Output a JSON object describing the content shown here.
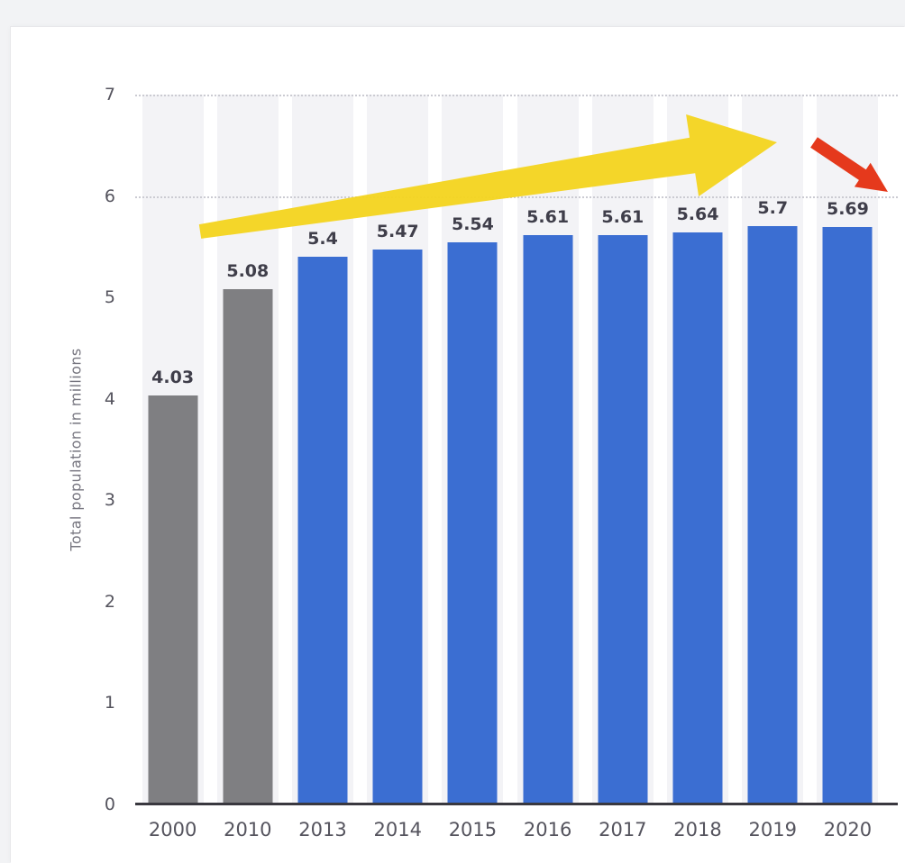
{
  "page": {
    "background_color": "#f2f3f5",
    "card_background_color": "#ffffff"
  },
  "chart_data": {
    "type": "bar",
    "title": "",
    "xlabel": "",
    "ylabel": "Total population in millions",
    "categories": [
      "2000",
      "2010",
      "2013",
      "2014",
      "2015",
      "2016",
      "2017",
      "2018",
      "2019",
      "2020"
    ],
    "values": [
      4.03,
      5.08,
      5.4,
      5.47,
      5.54,
      5.61,
      5.61,
      5.64,
      5.7,
      5.69
    ],
    "value_labels": [
      "4.03",
      "5.08",
      "5.4",
      "5.47",
      "5.54",
      "5.61",
      "5.61",
      "5.64",
      "5.7",
      "5.69"
    ],
    "bar_colors": [
      "#7f7f82",
      "#7f7f82",
      "#3b6ed2",
      "#3b6ed2",
      "#3b6ed2",
      "#3b6ed2",
      "#3b6ed2",
      "#3b6ed2",
      "#3b6ed2",
      "#3b6ed2"
    ],
    "ylim": [
      0,
      7
    ],
    "yticks": [
      0,
      1,
      2,
      3,
      4,
      5,
      6,
      7
    ],
    "gridlines_at": [
      6,
      7
    ],
    "grid": "dotted horizontal gridlines at y=6 and y=7",
    "legend": "none",
    "annotations": [
      {
        "name": "yellow-trend-arrow",
        "type": "arrow",
        "color": "#f3d41e",
        "description": "large tapered yellow arrow rising left-to-right from above the 2010 bar toward above the 2018/2019 bars"
      },
      {
        "name": "red-drop-arrow",
        "type": "arrow",
        "color": "#e5391c",
        "description": "small red arrow pointing down-right toward the top of the 2020 bar"
      }
    ]
  },
  "palette": {
    "band": "#f3f3f6",
    "grid_dot": "#cbcbd2",
    "axis_line": "#39383f",
    "value_label_text": "#3f3e4a",
    "tick_label_text": "#55545e",
    "y_title_text": "#76757f"
  }
}
